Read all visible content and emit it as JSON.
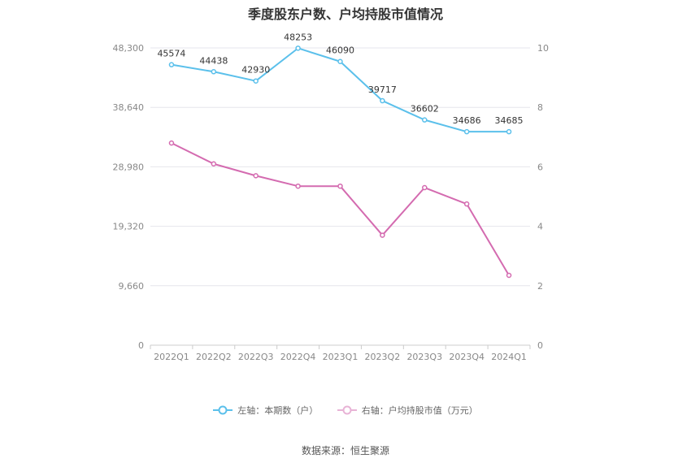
{
  "chart_data": {
    "type": "line",
    "title": "季度股东户数、户均持股市值情况",
    "categories": [
      "2022Q1",
      "2022Q2",
      "2022Q3",
      "2022Q4",
      "2023Q1",
      "2023Q2",
      "2023Q3",
      "2023Q4",
      "2024Q1"
    ],
    "left_axis": {
      "min": 0,
      "max": 48300,
      "ticks": [
        "0",
        "9,660",
        "19,320",
        "28,980",
        "38,640",
        "48,300"
      ]
    },
    "right_axis": {
      "min": 0,
      "max": 10,
      "ticks": [
        "0",
        "2",
        "4",
        "6",
        "8",
        "10"
      ]
    },
    "series": [
      {
        "name": "左轴：本期数（户）",
        "axis": "left",
        "color": "#5bc0eb",
        "values": [
          45574,
          44438,
          42930,
          48253,
          46090,
          39717,
          36602,
          34686,
          34685
        ],
        "labels": [
          "45574",
          "44438",
          "42930",
          "48253",
          "46090",
          "39717",
          "36602",
          "34686",
          "34685"
        ]
      },
      {
        "name": "右轴：户均持股市值（万元）",
        "axis": "right",
        "color": "#d46bb0",
        "values": [
          6.8,
          6.1,
          5.7,
          5.35,
          5.35,
          3.7,
          5.3,
          4.75,
          2.35
        ]
      }
    ],
    "grid": true,
    "legend_position": "bottom"
  },
  "footer": {
    "source": "数据来源：恒生聚源"
  }
}
